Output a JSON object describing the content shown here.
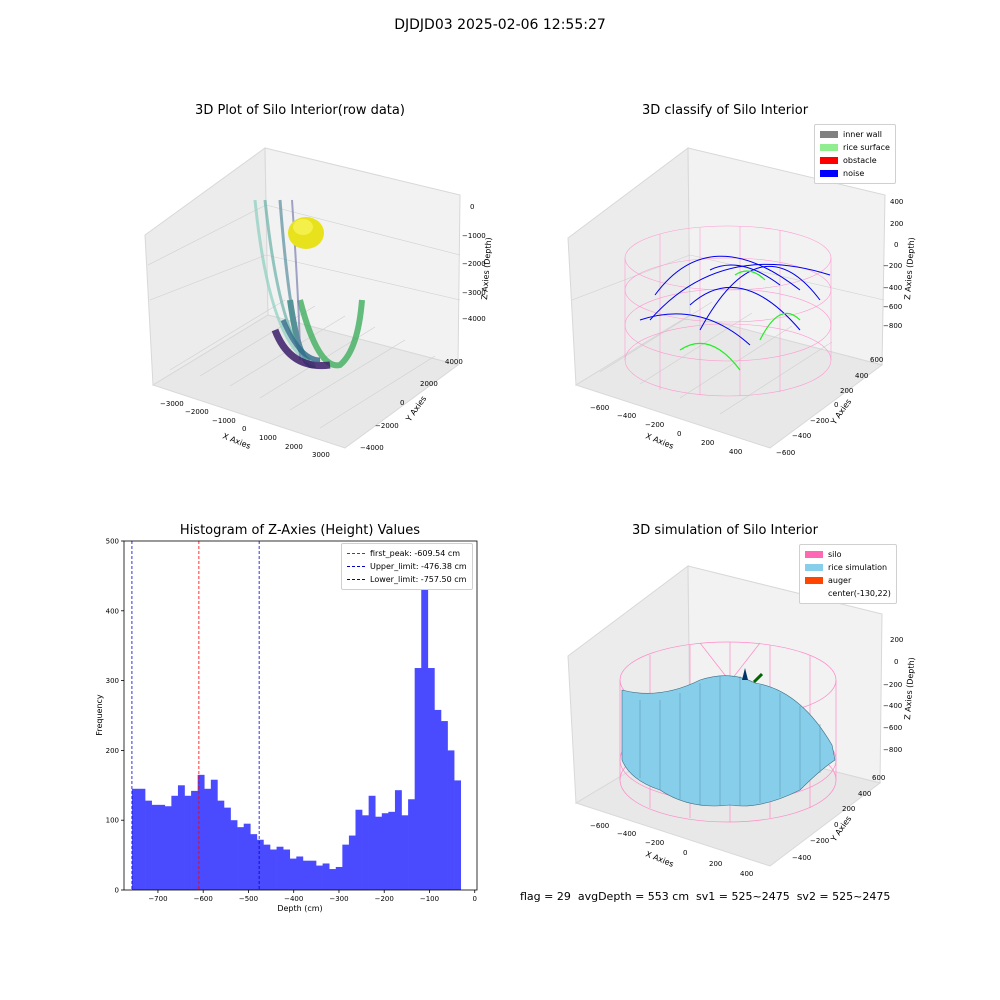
{
  "figure": {
    "suptitle": "DJDJD03 2025-02-06 12:55:27",
    "footer": "flag = 29  avgDepth = 553 cm  sv1 = 525~2475  sv2 = 525~2475"
  },
  "panels": {
    "raw": {
      "title": "3D Plot of Silo Interior(row data)",
      "xlabel": "X Axies",
      "ylabel": "Y Axies",
      "zlabel": "Z Axies (Depth)",
      "xticks": [
        "−3000",
        "−2000",
        "−1000",
        "0",
        "1000",
        "2000",
        "3000"
      ],
      "yticks": [
        "4000",
        "2000",
        "0",
        "−2000",
        "−4000"
      ],
      "zticks": [
        "0",
        "−1000",
        "−2000",
        "−3000",
        "−4000"
      ]
    },
    "classify": {
      "title": "3D classify of Silo Interior",
      "xlabel": "X Axies",
      "ylabel": "Y Axies",
      "zlabel": "Z Axies (Depth)",
      "xticks": [
        "−600",
        "−400",
        "−200",
        "0",
        "200",
        "400"
      ],
      "yticks": [
        "600",
        "400",
        "200",
        "0",
        "−200",
        "−400",
        "−600"
      ],
      "zticks": [
        "400",
        "200",
        "0",
        "−200",
        "−400",
        "−600",
        "−800"
      ],
      "legend": [
        {
          "label": "inner wall",
          "color": "#808080"
        },
        {
          "label": "rice surface",
          "color": "#90ee90"
        },
        {
          "label": "obstacle",
          "color": "#ff0000"
        },
        {
          "label": "noise",
          "color": "#0000ff"
        }
      ]
    },
    "simulation": {
      "title": "3D simulation of Silo Interior",
      "xlabel": "X Axies",
      "ylabel": "Y Axies",
      "zlabel": "Z Axies (Depth)",
      "xticks": [
        "−600",
        "−400",
        "−200",
        "0",
        "200",
        "400"
      ],
      "yticks": [
        "600",
        "400",
        "200",
        "0",
        "−200",
        "−400"
      ],
      "zticks": [
        "200",
        "0",
        "−200",
        "−400",
        "−600",
        "−800"
      ],
      "legend": [
        {
          "label": "silo",
          "color": "#ff69b4"
        },
        {
          "label": "rice simulation",
          "color": "#87ceeb"
        },
        {
          "label": "auger",
          "color": "#ff4500"
        },
        {
          "label": "center(-130,22)",
          "color": ""
        }
      ]
    }
  },
  "chart_data": [
    {
      "type": "bar",
      "title": "Histogram of Z-Axies (Height) Values",
      "xlabel": "Depth (cm)",
      "ylabel": "Frequency",
      "xlim": [
        -775,
        5
      ],
      "ylim": [
        0,
        500
      ],
      "xticks": [
        -700,
        -600,
        -500,
        -400,
        -300,
        -200,
        -100,
        0
      ],
      "yticks": [
        0,
        100,
        200,
        300,
        400,
        500
      ],
      "bar_color": "#4a4aff",
      "bins": {
        "start": -757.5,
        "width": 14.53
      },
      "values": [
        145,
        145,
        128,
        122,
        122,
        120,
        135,
        150,
        135,
        142,
        165,
        145,
        158,
        128,
        118,
        100,
        90,
        95,
        80,
        72,
        65,
        58,
        62,
        58,
        45,
        48,
        42,
        42,
        35,
        38,
        30,
        33,
        65,
        78,
        115,
        107,
        135,
        105,
        110,
        112,
        143,
        107,
        130,
        318,
        475,
        318,
        258,
        242,
        200,
        157
      ],
      "vlines": [
        {
          "label": "first_peak: -609.54 cm",
          "x": -609.54,
          "color": "#ff0000"
        },
        {
          "label": "Upper_limit: -476.38 cm",
          "x": -476.38,
          "color": "#0000cc"
        },
        {
          "label": "Lower_limit: -757.50 cm",
          "x": -757.5,
          "color": "#0000cc"
        }
      ],
      "legend_position": "top-right"
    }
  ]
}
